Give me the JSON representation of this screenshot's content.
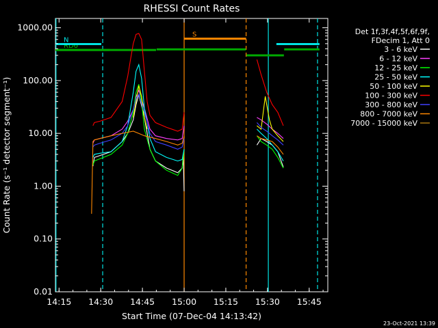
{
  "chart_data": {
    "type": "line",
    "title": "RHESSI Count Rates",
    "xlabel": "Start Time (07-Dec-04 14:13:42)",
    "ylabel": "Count Rate (s⁻¹ detector segment⁻¹)",
    "yscale": "log",
    "ylim": [
      0.01,
      1500
    ],
    "xlim_minutes": [
      0,
      98
    ],
    "x_ticks": [
      {
        "label": "14:15",
        "m": 1.3
      },
      {
        "label": "14:30",
        "m": 16.3
      },
      {
        "label": "14:45",
        "m": 31.3
      },
      {
        "label": "15:00",
        "m": 46.3
      },
      {
        "label": "15:15",
        "m": 61.3
      },
      {
        "label": "15:30",
        "m": 76.3
      },
      {
        "label": "15:45",
        "m": 91.3
      }
    ],
    "y_ticks": [
      {
        "label": "0.01",
        "v": 0.01
      },
      {
        "label": "0.10",
        "v": 0.1
      },
      {
        "label": "1.00",
        "v": 1
      },
      {
        "label": "10.00",
        "v": 10
      },
      {
        "label": "100.00",
        "v": 100
      },
      {
        "label": "1000.00",
        "v": 1000
      }
    ],
    "legend": {
      "header": [
        "Det 1f,3f,4f,5f,6f,9f,",
        "FDecim 1, Att 0"
      ],
      "position": "right"
    },
    "series": [
      {
        "name": "3 - 6 keV",
        "color": "#ffffff",
        "segments": [
          {
            "x": [
              13.5,
              14,
              16,
              20,
              24,
              26,
              28,
              29,
              30,
              32,
              34,
              36,
              40,
              44,
              45.6,
              46,
              46.3
            ],
            "y": [
              2.4,
              3.5,
              3.8,
              4.5,
              7,
              10,
              18,
              35,
              55,
              20,
              5,
              3,
              2.2,
              1.8,
              2.2,
              4,
              0.8
            ]
          },
          {
            "x": [
              72.5,
              74,
              76,
              78,
              80,
              81,
              82
            ],
            "y": [
              6,
              8,
              7,
              6,
              4.5,
              3.2,
              2.3
            ]
          }
        ]
      },
      {
        "name": "6 - 12 keV",
        "color": "#ff40ff",
        "segments": [
          {
            "x": [
              13.5,
              14,
              16,
              20,
              24,
              26,
              28,
              29,
              30,
              32,
              34,
              36,
              40,
              44,
              45.6,
              46.3
            ],
            "y": [
              6.5,
              7.5,
              8,
              9,
              12,
              17,
              28,
              50,
              65,
              30,
              12,
              9,
              8,
              7.5,
              8,
              14
            ]
          },
          {
            "x": [
              72.5,
              74,
              76,
              78,
              80,
              82
            ],
            "y": [
              20,
              18,
              15,
              12,
              10,
              8
            ]
          }
        ]
      },
      {
        "name": "12 - 25 keV",
        "color": "#00ff00",
        "segments": [
          {
            "x": [
              13.5,
              14,
              16,
              20,
              24,
              26,
              28,
              29,
              30,
              31,
              32,
              34,
              36,
              40,
              44,
              45.6,
              46.3
            ],
            "y": [
              2.5,
              3,
              3.3,
              4,
              6,
              10,
              25,
              60,
              85,
              40,
              12,
              5,
              3,
              2,
              1.6,
              2.2,
              5
            ]
          },
          {
            "x": [
              72.5,
              74,
              76,
              78,
              80,
              82
            ],
            "y": [
              9,
              7,
              6,
              5,
              3.5,
              2.2
            ]
          }
        ]
      },
      {
        "name": "25 - 50 keV",
        "color": "#00ffff",
        "segments": [
          {
            "x": [
              13.5,
              14,
              16,
              20,
              24,
              26,
              28,
              29,
              30,
              31,
              32,
              34,
              36,
              40,
              44,
              45.6,
              46.3
            ],
            "y": [
              3.5,
              4,
              4.2,
              4.5,
              7,
              14,
              60,
              150,
              200,
              110,
              30,
              8,
              4.5,
              3.5,
              3,
              3.2,
              5
            ]
          },
          {
            "x": [
              72.5,
              74,
              76,
              78,
              80,
              82
            ],
            "y": [
              12,
              10,
              8,
              6,
              4.5,
              3
            ]
          }
        ]
      },
      {
        "name": "50 - 100 keV",
        "color": "#ffff00",
        "segments": [
          {
            "x": [
              28,
              29,
              30,
              31,
              32,
              33
            ],
            "y": [
              20,
              40,
              80,
              50,
              20,
              12
            ]
          },
          {
            "x": [
              72.5,
              74,
              75.5,
              77,
              78,
              80,
              82
            ],
            "y": [
              14,
              12,
              50,
              18,
              12,
              9,
              7
            ]
          }
        ]
      },
      {
        "name": "100 - 300 keV",
        "color": "#ff0000",
        "segments": [
          {
            "x": [
              13.5,
              14,
              16,
              20,
              24,
              26,
              27,
              28,
              29,
              30,
              31,
              32,
              33,
              34,
              36,
              40,
              44,
              45.6,
              46.3
            ],
            "y": [
              14,
              16,
              17,
              20,
              40,
              120,
              250,
              500,
              750,
              780,
              600,
              150,
              40,
              22,
              16,
              13,
              11,
              12,
              25
            ]
          },
          {
            "x": [
              72.5,
              74,
              76,
              78,
              80,
              82
            ],
            "y": [
              250,
              130,
              60,
              35,
              25,
              14
            ]
          }
        ]
      },
      {
        "name": "300 - 800 keV",
        "color": "#4040ff",
        "segments": [
          {
            "x": [
              13.5,
              14,
              16,
              20,
              24,
              26,
              28,
              29,
              30,
              32,
              34,
              36,
              40,
              44,
              45.6,
              46.3
            ],
            "y": [
              5.5,
              6,
              6.5,
              7.5,
              10,
              14,
              28,
              45,
              55,
              25,
              10,
              7,
              6,
              5,
              5.5,
              8
            ]
          },
          {
            "x": [
              72.5,
              74,
              76,
              78,
              80,
              82
            ],
            "y": [
              16,
              13,
              11,
              9,
              7.5,
              6
            ]
          }
        ]
      },
      {
        "name": "800 - 7000 keV",
        "color": "#ff8800",
        "segments": [
          {
            "x": [
              13,
              13.5,
              14,
              16,
              20,
              24,
              28,
              30,
              32,
              36,
              40,
              44,
              45.6,
              46.3
            ],
            "y": [
              0.3,
              7,
              7.5,
              8,
              9,
              10,
              11,
              10,
              9,
              8,
              7,
              6,
              6.5,
              9
            ]
          },
          {
            "x": [
              72.5,
              74,
              76,
              78,
              80,
              82
            ],
            "y": [
              9,
              8,
              7.5,
              7,
              5.5,
              4
            ]
          }
        ]
      },
      {
        "name": "7000 - 15000 keV",
        "color": "#aa7711",
        "segments": []
      }
    ],
    "attenuator_bars": [
      {
        "label": "RD6",
        "color": "#00aa00",
        "start_m": 0,
        "end_m": 36.2,
        "level": 380
      },
      {
        "label": "RD0",
        "color": "#00aa00",
        "start_m": 0,
        "end_m": 19.5,
        "level": 380
      },
      {
        "label": "N",
        "color": "#00e5e5",
        "start_m": 0,
        "end_m": 16.5,
        "level": 490
      },
      {
        "label": "S",
        "color": "#ff8800",
        "start_m": 46.3,
        "end_m": 68.6,
        "level": 620
      },
      {
        "label": "",
        "color": "#00aa00",
        "start_m": 36.4,
        "end_m": 68.5,
        "level": 390
      },
      {
        "label": "",
        "color": "#00aa00",
        "start_m": 68.7,
        "end_m": 82.2,
        "level": 300
      },
      {
        "label": "",
        "color": "#00e5e5",
        "start_m": 79.5,
        "end_m": 95.0,
        "level": 490
      },
      {
        "label": "",
        "color": "#00aa00",
        "start_m": 82.3,
        "end_m": 95.0,
        "level": 390
      }
    ],
    "vertical_markers": [
      {
        "m": 0.2,
        "color": "#00e5e5",
        "style": "solid"
      },
      {
        "m": 17.0,
        "color": "#00e5e5",
        "style": "dashed"
      },
      {
        "m": 46.3,
        "color": "#ff8800",
        "style": "solid"
      },
      {
        "m": 68.6,
        "color": "#ff8800",
        "style": "dashed"
      },
      {
        "m": 76.6,
        "color": "#00e5e5",
        "style": "solid"
      },
      {
        "m": 94.3,
        "color": "#00e5e5",
        "style": "dashed"
      }
    ]
  },
  "footer": {
    "timestamp": "23-Oct-2021 13:39"
  }
}
